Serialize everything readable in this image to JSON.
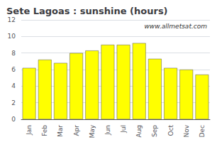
{
  "chart_data": {
    "type": "bar",
    "title": "Sete Lagoas : sunshine (hours)",
    "categories": [
      "Jan",
      "Feb",
      "Mar",
      "Apr",
      "May",
      "Jun",
      "Jul",
      "Aug",
      "Sep",
      "Oct",
      "Nov",
      "Dec"
    ],
    "values": [
      6.2,
      7.2,
      6.8,
      8.0,
      8.3,
      9.0,
      9.0,
      9.2,
      7.3,
      6.2,
      6.0,
      5.4
    ],
    "color": "#ffff00",
    "ylim": [
      0,
      12
    ],
    "yticks": [
      0,
      2,
      4,
      6,
      8,
      10,
      12
    ],
    "grid": true,
    "annotations": [
      "www.allmetsat.com"
    ]
  }
}
